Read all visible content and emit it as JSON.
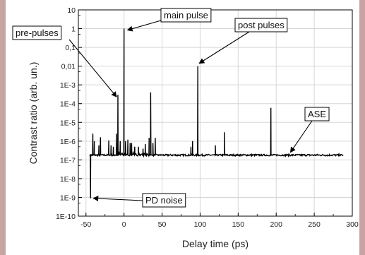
{
  "chart_data": {
    "type": "line",
    "title": "",
    "xlabel": "Delay time (ps)",
    "ylabel": "Contrast ratio (arb. un.)",
    "xlim": [
      -60,
      300
    ],
    "ylim_log10": [
      -10,
      1
    ],
    "yscale": "log",
    "grid": true,
    "x_ticks": [
      -50,
      0,
      50,
      100,
      150,
      200,
      250,
      300
    ],
    "x_tick_labels": [
      "-50",
      "0",
      "50",
      "100",
      "150",
      "200",
      "250",
      "300"
    ],
    "y_ticks_log10": [
      -10,
      -9,
      -8,
      -7,
      -6,
      -5,
      -4,
      -3,
      -2,
      -1,
      0,
      1
    ],
    "y_tick_labels": [
      "1E-10",
      "1E-9",
      "1E-8",
      "1E-7",
      "1E-6",
      "1E-5",
      "1E-4",
      "1E-3",
      "0,01",
      "0,1",
      "1",
      "10"
    ],
    "series": [
      {
        "color": "#000000",
        "baseline": 1.8e-07,
        "x_range": [
          -45,
          288
        ],
        "peaks": [
          {
            "x": -44,
            "y": 9e-10
          },
          {
            "x": -41,
            "y": 2.5e-06
          },
          {
            "x": -39,
            "y": 1e-06
          },
          {
            "x": -33,
            "y": 6e-07
          },
          {
            "x": -31,
            "y": 1.6e-06
          },
          {
            "x": -20,
            "y": 1.1e-06
          },
          {
            "x": -17,
            "y": 6e-07
          },
          {
            "x": -14,
            "y": 5e-07
          },
          {
            "x": -10,
            "y": 2.5e-06
          },
          {
            "x": -8,
            "y": 0.0003
          },
          {
            "x": -5,
            "y": 1e-06
          },
          {
            "x": 0,
            "y": 1.0
          },
          {
            "x": 2,
            "y": 1e-06
          },
          {
            "x": 5,
            "y": 1.2e-06
          },
          {
            "x": 8,
            "y": 8e-07
          },
          {
            "x": 10,
            "y": 8e-07
          },
          {
            "x": 14,
            "y": 5e-07
          },
          {
            "x": 19,
            "y": 5e-07
          },
          {
            "x": 25,
            "y": 4e-07
          },
          {
            "x": 28,
            "y": 7e-07
          },
          {
            "x": 33,
            "y": 1.5e-06
          },
          {
            "x": 35,
            "y": 0.0004
          },
          {
            "x": 38,
            "y": 8e-07
          },
          {
            "x": 41,
            "y": 1.5e-06
          },
          {
            "x": 88,
            "y": 5e-07
          },
          {
            "x": 90,
            "y": 1e-06
          },
          {
            "x": 97,
            "y": 0.01
          },
          {
            "x": 120,
            "y": 6e-07
          },
          {
            "x": 132,
            "y": 3e-06
          },
          {
            "x": 193,
            "y": 6e-05
          }
        ]
      }
    ],
    "annotations": [
      {
        "label": "main pulse",
        "target_x": 0,
        "target_y": 1
      },
      {
        "label": "pre-pulses",
        "target_x": -8,
        "target_y": 0.0003
      },
      {
        "label": "post pulses",
        "target_x": 97,
        "target_y": 0.01
      },
      {
        "label": "ASE",
        "target_x": 216,
        "target_y": 1.8e-07
      },
      {
        "label": "PD noise",
        "target_x": -44,
        "target_y": 9e-10
      }
    ]
  }
}
